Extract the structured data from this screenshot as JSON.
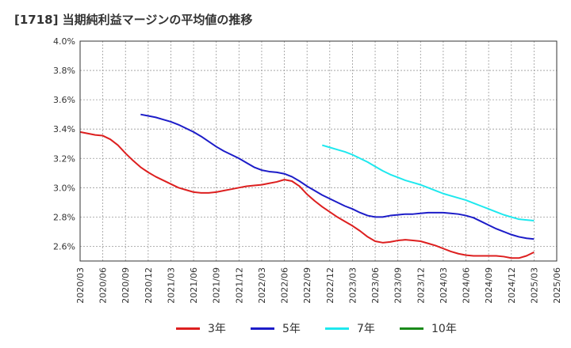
{
  "title": "[1718]  当期純利益マージンの平均値の推移",
  "chart_data": {
    "type": "line",
    "ylim": [
      2.5,
      4.0
    ],
    "yticks": [
      2.6,
      2.8,
      3.0,
      3.2,
      3.4,
      3.6,
      3.8,
      4.0
    ],
    "yticklabels": [
      "2.6%",
      "2.8%",
      "3.0%",
      "3.2%",
      "3.4%",
      "3.6%",
      "3.8%",
      "4.0%"
    ],
    "xticklabels": [
      "2020/03",
      "2020/06",
      "2020/09",
      "2020/12",
      "2021/03",
      "2021/06",
      "2021/09",
      "2021/12",
      "2022/03",
      "2022/06",
      "2022/09",
      "2022/12",
      "2023/03",
      "2023/06",
      "2023/09",
      "2023/12",
      "2024/03",
      "2024/06",
      "2024/09",
      "2024/12",
      "2025/03",
      "2025/06"
    ],
    "grid": true,
    "legend_position": "bottom",
    "series": [
      {
        "name": "3年",
        "color": "#dd1f1f",
        "x": [
          "2020/03",
          "2020/04",
          "2020/05",
          "2020/06",
          "2020/07",
          "2020/08",
          "2020/09",
          "2020/10",
          "2020/11",
          "2020/12",
          "2021/01",
          "2021/02",
          "2021/03",
          "2021/04",
          "2021/05",
          "2021/06",
          "2021/07",
          "2021/08",
          "2021/09",
          "2021/10",
          "2021/11",
          "2021/12",
          "2022/01",
          "2022/02",
          "2022/03",
          "2022/04",
          "2022/05",
          "2022/06",
          "2022/07",
          "2022/08",
          "2022/09",
          "2022/10",
          "2022/11",
          "2022/12",
          "2023/01",
          "2023/02",
          "2023/03",
          "2023/04",
          "2023/05",
          "2023/06",
          "2023/07",
          "2023/08",
          "2023/09",
          "2023/10",
          "2023/11",
          "2023/12",
          "2024/01",
          "2024/02",
          "2024/03",
          "2024/04",
          "2024/05",
          "2024/06",
          "2024/07",
          "2024/08",
          "2024/09",
          "2024/10",
          "2024/11",
          "2024/12",
          "2025/01",
          "2025/02",
          "2025/03"
        ],
        "values": [
          3.38,
          3.37,
          3.36,
          3.355,
          3.33,
          3.29,
          3.235,
          3.185,
          3.14,
          3.105,
          3.075,
          3.05,
          3.025,
          3.0,
          2.985,
          2.97,
          2.965,
          2.965,
          2.97,
          2.98,
          2.99,
          3.0,
          3.01,
          3.015,
          3.02,
          3.03,
          3.04,
          3.055,
          3.045,
          3.01,
          2.955,
          2.91,
          2.87,
          2.835,
          2.8,
          2.77,
          2.74,
          2.705,
          2.665,
          2.635,
          2.625,
          2.63,
          2.64,
          2.645,
          2.64,
          2.635,
          2.62,
          2.605,
          2.585,
          2.565,
          2.55,
          2.54,
          2.535,
          2.535,
          2.535,
          2.535,
          2.53,
          2.52,
          2.52,
          2.535,
          2.56
        ]
      },
      {
        "name": "5年",
        "color": "#1c1cc8",
        "x": [
          "2020/11",
          "2020/12",
          "2021/01",
          "2021/02",
          "2021/03",
          "2021/04",
          "2021/05",
          "2021/06",
          "2021/07",
          "2021/08",
          "2021/09",
          "2021/10",
          "2021/11",
          "2021/12",
          "2022/01",
          "2022/02",
          "2022/03",
          "2022/04",
          "2022/05",
          "2022/06",
          "2022/07",
          "2022/08",
          "2022/09",
          "2022/10",
          "2022/11",
          "2022/12",
          "2023/01",
          "2023/02",
          "2023/03",
          "2023/04",
          "2023/05",
          "2023/06",
          "2023/07",
          "2023/08",
          "2023/09",
          "2023/10",
          "2023/11",
          "2023/12",
          "2024/01",
          "2024/02",
          "2024/03",
          "2024/04",
          "2024/05",
          "2024/06",
          "2024/07",
          "2024/08",
          "2024/09",
          "2024/10",
          "2024/11",
          "2024/12",
          "2025/01",
          "2025/02",
          "2025/03"
        ],
        "values": [
          3.5,
          3.49,
          3.48,
          3.465,
          3.45,
          3.43,
          3.405,
          3.38,
          3.35,
          3.315,
          3.28,
          3.25,
          3.225,
          3.2,
          3.17,
          3.14,
          3.12,
          3.11,
          3.105,
          3.095,
          3.075,
          3.045,
          3.01,
          2.98,
          2.95,
          2.925,
          2.9,
          2.875,
          2.855,
          2.83,
          2.81,
          2.8,
          2.8,
          2.81,
          2.815,
          2.82,
          2.82,
          2.825,
          2.83,
          2.83,
          2.83,
          2.825,
          2.82,
          2.81,
          2.795,
          2.77,
          2.745,
          2.72,
          2.7,
          2.68,
          2.665,
          2.655,
          2.65
        ]
      },
      {
        "name": "7年",
        "color": "#1ee8ee",
        "x": [
          "2022/11",
          "2022/12",
          "2023/01",
          "2023/02",
          "2023/03",
          "2023/04",
          "2023/05",
          "2023/06",
          "2023/07",
          "2023/08",
          "2023/09",
          "2023/10",
          "2023/11",
          "2023/12",
          "2024/01",
          "2024/02",
          "2024/03",
          "2024/04",
          "2024/05",
          "2024/06",
          "2024/07",
          "2024/08",
          "2024/09",
          "2024/10",
          "2024/11",
          "2024/12",
          "2025/01",
          "2025/02",
          "2025/03"
        ],
        "values": [
          3.29,
          3.275,
          3.26,
          3.245,
          3.225,
          3.2,
          3.175,
          3.145,
          3.115,
          3.09,
          3.07,
          3.05,
          3.035,
          3.02,
          3.0,
          2.98,
          2.96,
          2.945,
          2.93,
          2.915,
          2.895,
          2.875,
          2.855,
          2.835,
          2.815,
          2.8,
          2.785,
          2.78,
          2.775
        ]
      },
      {
        "name": "10年",
        "color": "#1a8a1a",
        "x": [],
        "values": []
      }
    ]
  }
}
